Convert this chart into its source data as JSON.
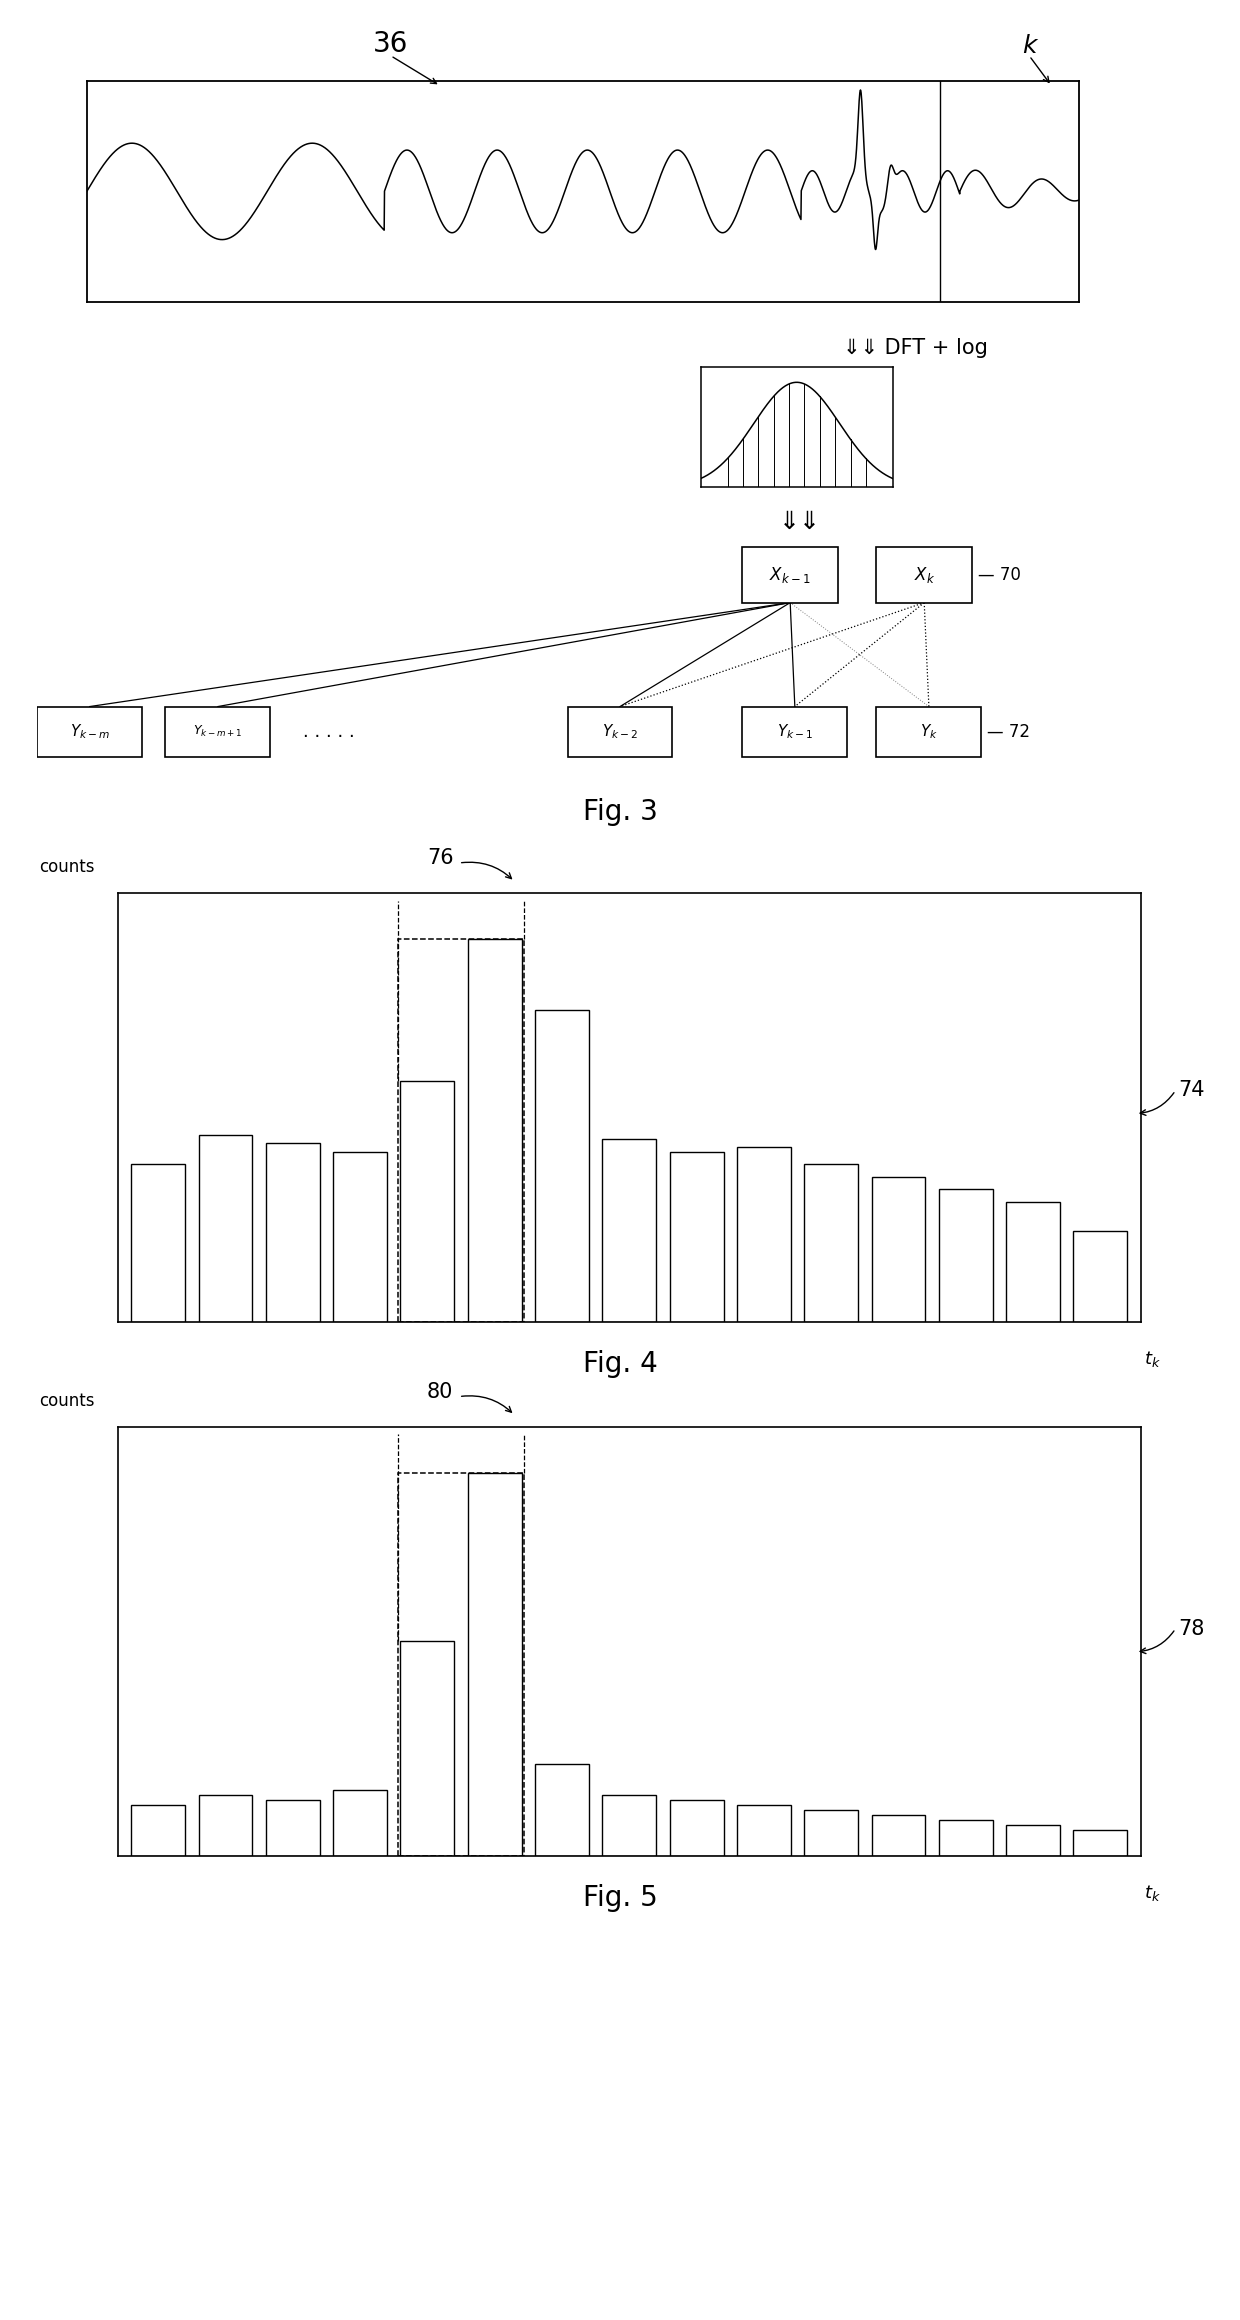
{
  "bg_color": "#ffffff",
  "line_color": "#000000",
  "fig_width": 12.4,
  "fig_height": 23.2,
  "fig4_bars": [
    0.38,
    0.45,
    0.43,
    0.41,
    0.58,
    0.92,
    0.75,
    0.44,
    0.41,
    0.42,
    0.38,
    0.35,
    0.32,
    0.29,
    0.22
  ],
  "fig4_highlight_bars": [
    4,
    5
  ],
  "fig5_bars": [
    0.1,
    0.12,
    0.11,
    0.13,
    0.42,
    0.75,
    0.18,
    0.12,
    0.11,
    0.1,
    0.09,
    0.08,
    0.07,
    0.06,
    0.05
  ],
  "fig5_highlight_bars": [
    4,
    5
  ]
}
